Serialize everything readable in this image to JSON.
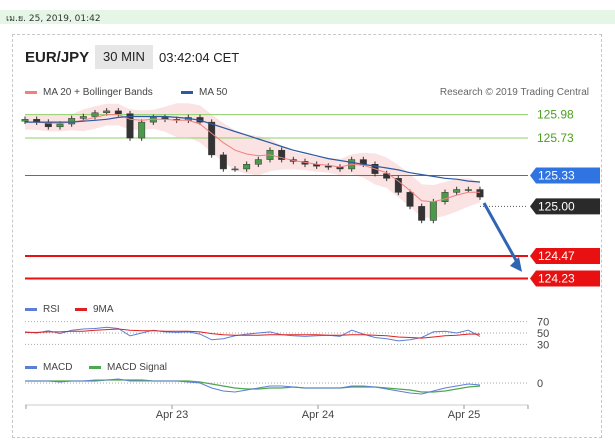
{
  "topbar": {
    "date": "เม.ย. 25, 2019, 01:42"
  },
  "header": {
    "pair": "EUR/JPY",
    "timeframe": "30 MIN",
    "time": "03:42:04 CET"
  },
  "legend_main": [
    {
      "label": "MA 20 + Bollinger Bands",
      "color": "#f08080"
    },
    {
      "label": "MA 50",
      "color": "#2c5aa0"
    }
  ],
  "credit": "Research © 2019 Trading Central",
  "legend_rsi": [
    {
      "label": "RSI",
      "color": "#5b7fd6"
    },
    {
      "label": "9MA",
      "color": "#e02020"
    }
  ],
  "legend_macd": [
    {
      "label": "MACD",
      "color": "#5b7fd6"
    },
    {
      "label": "MACD Signal",
      "color": "#4fa84f"
    }
  ],
  "colors": {
    "resistance": "#8fcf6a",
    "pivot": "#3a6fe0",
    "pivot_label": "#2f74e0",
    "support": "#e81010",
    "current": "#2a2a2a",
    "arrow": "#2f66b3"
  },
  "chart_data": [
    {
      "type": "line",
      "title": "EUR/JPY 30 MIN",
      "x_ticks": [
        "Apr 23",
        "Apr 24",
        "Apr 25"
      ],
      "ylim": [
        124.0,
        126.35
      ],
      "levels": [
        {
          "label": "125.98",
          "value": 125.98,
          "kind": "resistance"
        },
        {
          "label": "125.73",
          "value": 125.73,
          "kind": "resistance"
        },
        {
          "label": "125.33",
          "value": 125.33,
          "kind": "pivot"
        },
        {
          "label": "125.00",
          "value": 125.0,
          "kind": "current"
        },
        {
          "label": "124.47",
          "value": 124.47,
          "kind": "support"
        },
        {
          "label": "124.23",
          "value": 124.23,
          "kind": "support"
        }
      ],
      "series": [
        {
          "name": "Price",
          "values": [
            125.93,
            125.9,
            125.85,
            125.88,
            125.94,
            125.96,
            126.0,
            126.02,
            125.99,
            125.73,
            125.9,
            125.95,
            125.93,
            125.92,
            125.95,
            125.9,
            125.55,
            125.4,
            125.4,
            125.45,
            125.5,
            125.6,
            125.5,
            125.48,
            125.45,
            125.43,
            125.42,
            125.4,
            125.5,
            125.45,
            125.35,
            125.3,
            125.15,
            125.0,
            124.85,
            125.05,
            125.15,
            125.18,
            125.18,
            125.1
          ]
        },
        {
          "name": "MA 20",
          "values": [
            125.9,
            125.9,
            125.89,
            125.89,
            125.9,
            125.92,
            125.95,
            125.98,
            125.98,
            125.93,
            125.92,
            125.93,
            125.93,
            125.92,
            125.92,
            125.88,
            125.78,
            125.68,
            125.6,
            125.56,
            125.54,
            125.55,
            125.52,
            125.49,
            125.47,
            125.45,
            125.44,
            125.42,
            125.45,
            125.44,
            125.4,
            125.36,
            125.27,
            125.17,
            125.06,
            125.05,
            125.08,
            125.12,
            125.15,
            125.15
          ]
        },
        {
          "name": "MA 50",
          "values": [
            125.9,
            125.9,
            125.9,
            125.9,
            125.9,
            125.91,
            125.92,
            125.93,
            125.95,
            125.96,
            125.96,
            125.96,
            125.96,
            125.95,
            125.94,
            125.92,
            125.88,
            125.84,
            125.8,
            125.76,
            125.72,
            125.68,
            125.64,
            125.6,
            125.57,
            125.54,
            125.51,
            125.49,
            125.47,
            125.45,
            125.43,
            125.41,
            125.39,
            125.36,
            125.34,
            125.32,
            125.3,
            125.29,
            125.27,
            125.26
          ]
        }
      ]
    },
    {
      "type": "line",
      "title": "RSI",
      "ylim": [
        20,
        80
      ],
      "y_ticks": [
        "70",
        "50",
        "30"
      ],
      "series": [
        {
          "name": "RSI",
          "values": [
            52,
            50,
            54,
            49,
            55,
            57,
            58,
            60,
            58,
            45,
            50,
            55,
            52,
            51,
            52,
            48,
            38,
            40,
            45,
            48,
            50,
            52,
            47,
            45,
            44,
            45,
            46,
            44,
            55,
            48,
            42,
            40,
            36,
            38,
            42,
            52,
            53,
            50,
            55,
            44
          ]
        },
        {
          "name": "9MA",
          "values": [
            51,
            51,
            52,
            52,
            53,
            53,
            55,
            56,
            57,
            55,
            54,
            54,
            53,
            53,
            53,
            52,
            49,
            47,
            46,
            46,
            46,
            47,
            47,
            47,
            47,
            47,
            46,
            46,
            47,
            47,
            46,
            45,
            43,
            42,
            41,
            43,
            45,
            46,
            48,
            48
          ]
        }
      ]
    },
    {
      "type": "line",
      "title": "MACD",
      "ylim": [
        -0.15,
        0.1
      ],
      "y_ticks": [
        "0"
      ],
      "series": [
        {
          "name": "MACD",
          "values": [
            0.02,
            0.02,
            0.02,
            0.01,
            0.02,
            0.02,
            0.03,
            0.03,
            0.04,
            0.02,
            0.02,
            0.02,
            0.02,
            0.02,
            0.01,
            0.0,
            -0.05,
            -0.08,
            -0.09,
            -0.07,
            -0.05,
            -0.03,
            -0.03,
            -0.04,
            -0.05,
            -0.05,
            -0.05,
            -0.05,
            -0.03,
            -0.03,
            -0.04,
            -0.06,
            -0.08,
            -0.1,
            -0.11,
            -0.08,
            -0.05,
            -0.03,
            -0.01,
            -0.02
          ]
        },
        {
          "name": "MACD Signal",
          "values": [
            0.02,
            0.02,
            0.02,
            0.02,
            0.02,
            0.02,
            0.02,
            0.03,
            0.03,
            0.03,
            0.03,
            0.02,
            0.02,
            0.02,
            0.02,
            0.01,
            -0.01,
            -0.03,
            -0.05,
            -0.06,
            -0.06,
            -0.05,
            -0.05,
            -0.04,
            -0.05,
            -0.05,
            -0.05,
            -0.05,
            -0.04,
            -0.04,
            -0.04,
            -0.05,
            -0.06,
            -0.07,
            -0.09,
            -0.09,
            -0.08,
            -0.06,
            -0.04,
            -0.03
          ]
        }
      ]
    }
  ]
}
